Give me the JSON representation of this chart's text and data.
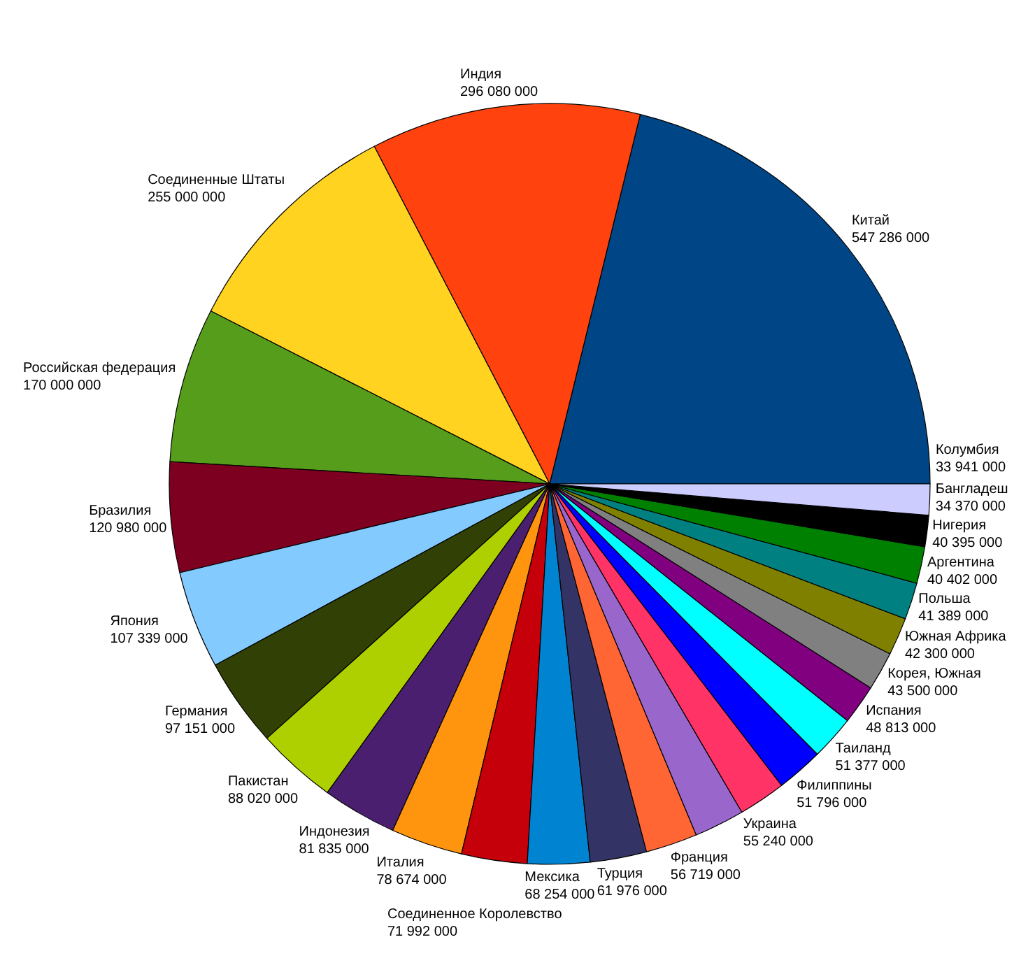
{
  "chart_data": {
    "type": "pie",
    "categories": [
      "Китай",
      "Индия",
      "Соединенные Штаты",
      "Российская федерация",
      "Бразилия",
      "Япония",
      "Германия",
      "Пакистан",
      "Индонезия",
      "Италия",
      "Соединенное Королевство",
      "Мексика",
      "Турция",
      "Франция",
      "Украина",
      "Филиппины",
      "Таиланд",
      "Испания",
      "Корея, Южная",
      "Южная Африка",
      "Польша",
      "Аргентина",
      "Нигерия",
      "Бангладеш",
      "Колумбия"
    ],
    "values": [
      547286000,
      296080000,
      255000000,
      170000000,
      120980000,
      107339000,
      97151000,
      88020000,
      81835000,
      78674000,
      71992000,
      68254000,
      61976000,
      56719000,
      55240000,
      51796000,
      51377000,
      48813000,
      43500000,
      42300000,
      41389000,
      40402000,
      40395000,
      34370000,
      33941000
    ],
    "value_labels": [
      "547 286 000",
      "296 080 000",
      "255 000 000",
      "170 000 000",
      "120 980 000",
      "107 339 000",
      "97 151 000",
      "88 020 000",
      "81 835 000",
      "78 674 000",
      "71 992 000",
      "68 254 000",
      "61 976 000",
      "56 719 000",
      "55 240 000",
      "51 796 000",
      "51 377 000",
      "48 813 000",
      "43 500 000",
      "42 300 000",
      "41 389 000",
      "40 402 000",
      "40 395 000",
      "34 370 000",
      "33 941 000"
    ],
    "colors": [
      "#004586",
      "#ff420e",
      "#ffd320",
      "#579d1c",
      "#7e0021",
      "#83caff",
      "#314004",
      "#aecf00",
      "#4b1f6f",
      "#ff950e",
      "#c5000b",
      "#0084d1",
      "#333366",
      "#ff6633",
      "#9966cc",
      "#ff3366",
      "#0000ff",
      "#00ffff",
      "#800080",
      "#808080",
      "#808000",
      "#008080",
      "#008000",
      "#000000",
      "#ccccff"
    ]
  }
}
